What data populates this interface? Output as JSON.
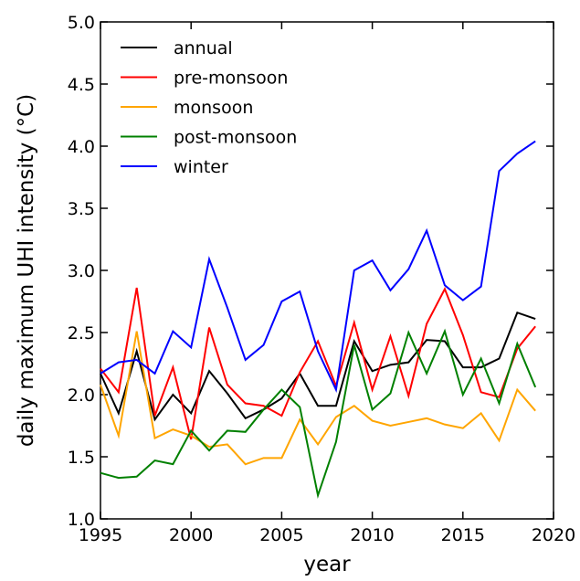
{
  "chart_data": {
    "type": "line",
    "xlabel": "year",
    "ylabel": "daily maximum UHI intensity (°C)",
    "x": [
      1995,
      1996,
      1997,
      1998,
      1999,
      2000,
      2001,
      2002,
      2003,
      2004,
      2005,
      2006,
      2007,
      2008,
      2009,
      2010,
      2011,
      2012,
      2013,
      2014,
      2015,
      2016,
      2017,
      2018,
      2019
    ],
    "series": [
      {
        "name": "annual",
        "color": "#000000",
        "values": [
          2.17,
          1.85,
          2.35,
          1.8,
          2.0,
          1.85,
          2.19,
          2.01,
          1.81,
          1.88,
          1.97,
          2.17,
          1.91,
          1.91,
          2.43,
          2.19,
          2.24,
          2.26,
          2.44,
          2.43,
          2.22,
          2.22,
          2.29,
          2.66,
          2.61
        ]
      },
      {
        "name": "pre-monsoon",
        "color": "#ff0000",
        "values": [
          2.21,
          2.02,
          2.86,
          1.83,
          2.22,
          1.64,
          2.54,
          2.08,
          1.93,
          1.91,
          1.83,
          2.18,
          2.43,
          2.07,
          2.58,
          2.04,
          2.47,
          1.99,
          2.57,
          2.85,
          2.48,
          2.02,
          1.98,
          2.37,
          2.55
        ]
      },
      {
        "name": "monsoon",
        "color": "#ffa500",
        "values": [
          2.08,
          1.67,
          2.51,
          1.65,
          1.72,
          1.67,
          1.58,
          1.6,
          1.44,
          1.49,
          1.49,
          1.8,
          1.6,
          1.82,
          1.91,
          1.79,
          1.75,
          1.78,
          1.81,
          1.76,
          1.73,
          1.85,
          1.63,
          2.04,
          1.87
        ]
      },
      {
        "name": "post-monsoon",
        "color": "#008000",
        "values": [
          1.37,
          1.33,
          1.34,
          1.47,
          1.44,
          1.71,
          1.55,
          1.71,
          1.7,
          1.88,
          2.04,
          1.9,
          1.19,
          1.62,
          2.4,
          1.88,
          2.01,
          2.5,
          2.17,
          2.51,
          2.0,
          2.29,
          1.93,
          2.41,
          2.06
        ]
      },
      {
        "name": "winter",
        "color": "#0000ff",
        "values": [
          2.17,
          2.26,
          2.28,
          2.17,
          2.51,
          2.38,
          3.09,
          2.7,
          2.28,
          2.4,
          2.75,
          2.83,
          2.35,
          2.04,
          3.0,
          3.08,
          2.84,
          3.01,
          3.32,
          2.88,
          2.76,
          2.87,
          3.8,
          3.94,
          4.04
        ]
      }
    ],
    "xlim": [
      1995,
      2020
    ],
    "xticks": [
      1995,
      2000,
      2005,
      2010,
      2015,
      2020
    ],
    "ylim": [
      1,
      5
    ],
    "yticks": [
      {
        "value": 1,
        "label": "1.0"
      },
      {
        "value": 1.5,
        "label": "1.5"
      },
      {
        "value": 2,
        "label": "2.0"
      },
      {
        "value": 2.5,
        "label": "2.5"
      },
      {
        "value": 3,
        "label": "3.0"
      },
      {
        "value": 3.5,
        "label": "3.5"
      },
      {
        "value": 4,
        "label": "4.0"
      },
      {
        "value": 4.5,
        "label": "4.5"
      },
      {
        "value": 5,
        "label": "5.0"
      }
    ],
    "legend": "upper left",
    "grid": false
  }
}
